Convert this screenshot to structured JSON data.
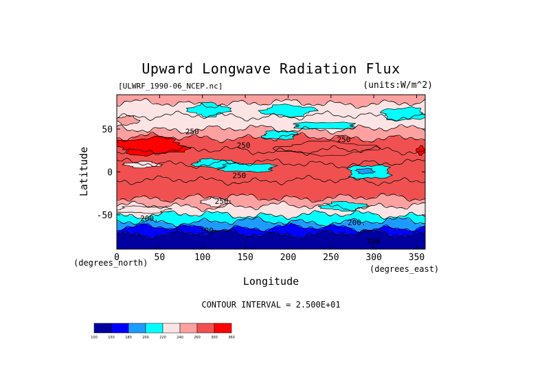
{
  "chart_data": {
    "type": "heatmap",
    "title": "Upward Longwave Radiation Flux",
    "file_label": "[ULWRF_1990-06_NCEP.nc]",
    "units_label": "(units:W/m^2)",
    "xlabel": "Longitude",
    "ylabel": "Latitude",
    "x_unit_left": "(degrees_north)",
    "x_unit_right": "(degrees_east)",
    "xlim": [
      0,
      360
    ],
    "ylim": [
      -90,
      90
    ],
    "x_ticks": [
      0,
      50,
      100,
      150,
      200,
      250,
      300,
      350
    ],
    "y_ticks": [
      50,
      0,
      -50
    ],
    "contour_interval_text": "CONTOUR INTERVAL = 2.500E+01",
    "contour_labels": [
      {
        "text": "250",
        "lon": 148,
        "lat": 28
      },
      {
        "text": "250",
        "lon": 143,
        "lat": -7
      },
      {
        "text": "250.",
        "lon": 125,
        "lat": -37
      },
      {
        "text": "200.",
        "lon": 38,
        "lat": -57
      },
      {
        "text": "200.",
        "lon": 280,
        "lat": -62
      },
      {
        "text": "100",
        "lon": 105,
        "lat": -71
      },
      {
        "text": "150",
        "lon": 299,
        "lat": -84
      },
      {
        "text": "250",
        "lon": 88,
        "lat": 44
      },
      {
        "text": "250",
        "lon": 265,
        "lat": 35
      }
    ],
    "colorbar": {
      "levels": [
        "100",
        "150",
        "180",
        "200",
        "220",
        "240",
        "260",
        "300",
        "360"
      ],
      "colors": [
        "#0000a0",
        "#0000ff",
        "#1e9bff",
        "#00ffff",
        "#fde4e4",
        "#fca0a0",
        "#f05050",
        "#ff0000"
      ]
    },
    "bands": [
      {
        "lat_from": 90,
        "lat_to": 80,
        "value": 245
      },
      {
        "lat_from": 80,
        "lat_to": 65,
        "value": 235
      },
      {
        "lat_from": 65,
        "lat_to": 50,
        "value": 228
      },
      {
        "lat_from": 50,
        "lat_to": 40,
        "value": 250
      },
      {
        "lat_from": 40,
        "lat_to": 25,
        "value": 280
      },
      {
        "lat_from": 25,
        "lat_to": 10,
        "value": 270
      },
      {
        "lat_from": 10,
        "lat_to": -10,
        "value": 265
      },
      {
        "lat_from": -10,
        "lat_to": -30,
        "value": 275
      },
      {
        "lat_from": -30,
        "lat_to": -40,
        "value": 250
      },
      {
        "lat_from": -40,
        "lat_to": -50,
        "value": 232
      },
      {
        "lat_from": -50,
        "lat_to": -58,
        "value": 210
      },
      {
        "lat_from": -58,
        "lat_to": -65,
        "value": 195
      },
      {
        "lat_from": -65,
        "lat_to": -72,
        "value": 170
      },
      {
        "lat_from": -72,
        "lat_to": -90,
        "value": 140
      }
    ],
    "features": [
      {
        "lon0": 0,
        "lon1": 80,
        "lat0": 20,
        "lat1": 40,
        "value": 310
      },
      {
        "lon0": 350,
        "lon1": 360,
        "lat0": 20,
        "lat1": 30,
        "value": 310
      },
      {
        "lon0": 190,
        "lon1": 300,
        "lat0": 20,
        "lat1": 35,
        "value": 275
      },
      {
        "lon0": 90,
        "lon1": 135,
        "lat0": 5,
        "lat1": 15,
        "value": 210
      },
      {
        "lon0": 120,
        "lon1": 185,
        "lat0": 0,
        "lat1": 10,
        "value": 215
      },
      {
        "lon0": 270,
        "lon1": 320,
        "lat0": -8,
        "lat1": 8,
        "value": 205
      },
      {
        "lon0": 280,
        "lon1": 300,
        "lat0": -2,
        "lat1": 4,
        "value": 190
      },
      {
        "lon0": 10,
        "lon1": 50,
        "lat0": 5,
        "lat1": 12,
        "value": 230
      },
      {
        "lon0": 85,
        "lon1": 130,
        "lat0": 65,
        "lat1": 80,
        "value": 215
      },
      {
        "lon0": 170,
        "lon1": 230,
        "lat0": 65,
        "lat1": 78,
        "value": 215
      },
      {
        "lon0": 170,
        "lon1": 210,
        "lat0": 38,
        "lat1": 48,
        "value": 210
      },
      {
        "lon0": 205,
        "lon1": 280,
        "lat0": 50,
        "lat1": 58,
        "value": 215
      },
      {
        "lon0": 310,
        "lon1": 360,
        "lat0": 60,
        "lat1": 75,
        "value": 215
      },
      {
        "lon0": 0,
        "lon1": 25,
        "lat0": 55,
        "lat1": 65,
        "value": 245
      },
      {
        "lon0": 100,
        "lon1": 130,
        "lat0": -40,
        "lat1": -30,
        "value": 238
      },
      {
        "lon0": 240,
        "lon1": 290,
        "lat0": -45,
        "lat1": -35,
        "value": 215
      },
      {
        "lon0": 0,
        "lon1": 60,
        "lat0": -48,
        "lat1": -40,
        "value": 230
      }
    ]
  }
}
